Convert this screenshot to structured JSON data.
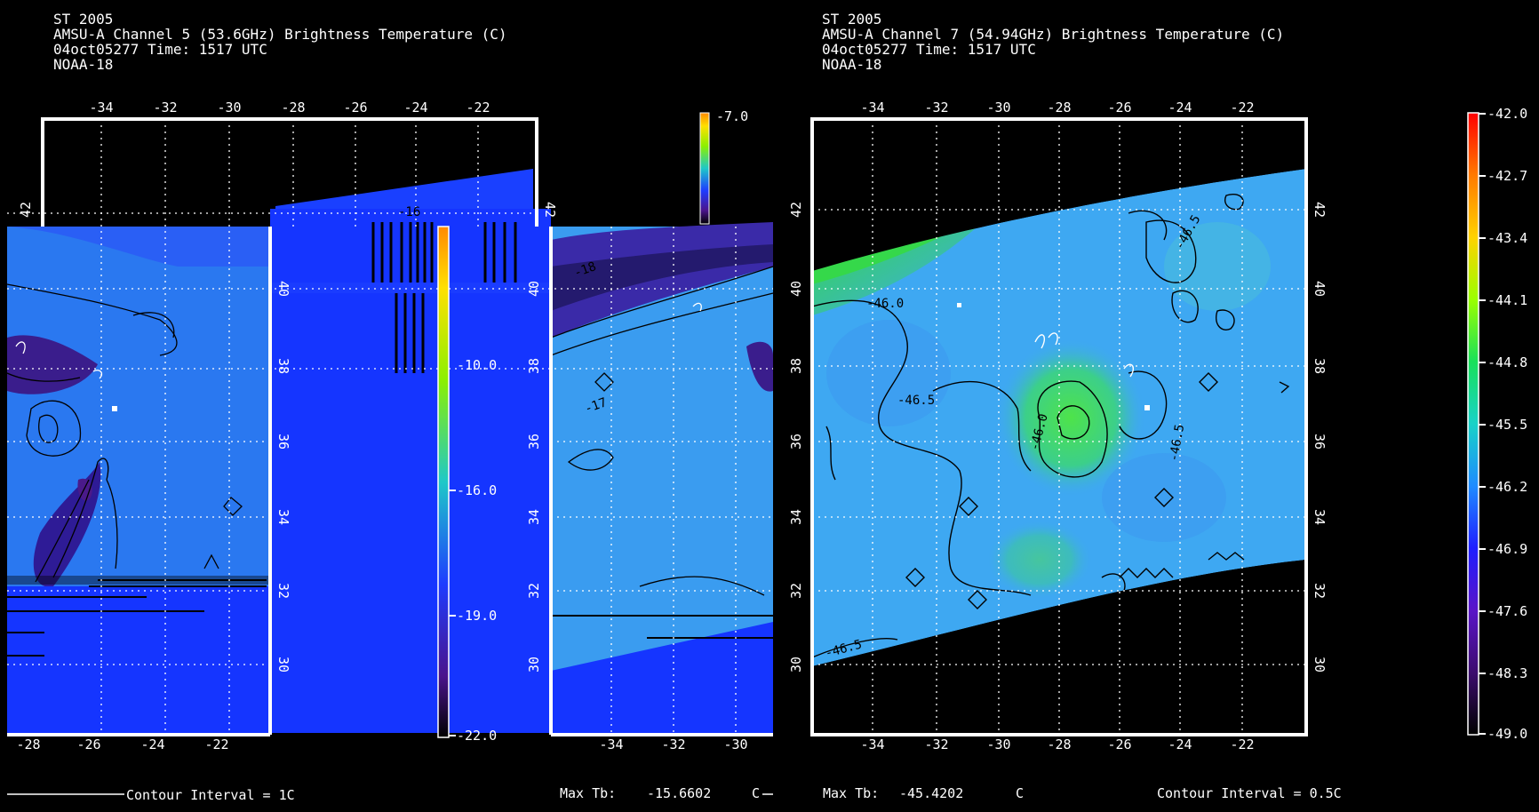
{
  "left_panel": {
    "header": [
      "ST 2005",
      "AMSU-A Channel 5 (53.6GHz) Brightness Temperature (C)",
      "04oct05277 Time: 1517 UTC",
      "NOAA-18"
    ],
    "top_lon_labels": [
      "-34",
      "-32",
      "-30",
      "-28",
      "-26",
      "-24",
      "-22"
    ],
    "bottom_lon_labels": [
      "-28",
      "-26",
      "-24",
      "-22"
    ],
    "bottom_lon_labels_inset": [
      "-34",
      "-32",
      "-30"
    ],
    "lat_labels": [
      "42",
      "40",
      "38",
      "36",
      "34",
      "32",
      "30"
    ],
    "lat_labels_left_visible": [
      "42"
    ],
    "colorbar_labels": [
      "-7.0",
      "-16.0",
      "-19.0",
      "-22.0"
    ],
    "colorbar_partial_label": "-10.0",
    "contour_interval": "Contour Interval = 1C",
    "max_tb_label": "Max Tb:",
    "max_tb_value": "-15.6602",
    "max_tb_unit": "C",
    "contour_labels": [
      "-17",
      "-16",
      "-18"
    ]
  },
  "right_panel": {
    "header": [
      "ST 2005",
      "AMSU-A Channel 7 (54.94GHz) Brightness Temperature (C)",
      "04oct05277 Time: 1517 UTC",
      "NOAA-18"
    ],
    "top_lon_labels": [
      "-34",
      "-32",
      "-30",
      "-28",
      "-26",
      "-24",
      "-22"
    ],
    "bottom_lon_labels": [
      "-34",
      "-32",
      "-30",
      "-28",
      "-26",
      "-24",
      "-22"
    ],
    "lat_labels": [
      "42",
      "40",
      "38",
      "36",
      "34",
      "32",
      "30"
    ],
    "colorbar_labels": [
      "-42.0",
      "-42.7",
      "-43.4",
      "-44.1",
      "-44.8",
      "-45.5",
      "-46.2",
      "-46.9",
      "-47.6",
      "-48.3",
      "-49.0"
    ],
    "contour_labels": [
      "-46.0",
      "-46.5",
      "-46.0",
      "-46.5",
      "-46.5",
      "-46.5"
    ],
    "max_tb_label": "Max Tb:",
    "max_tb_value": "-45.4202",
    "max_tb_unit": "C",
    "contour_interval": "Contour Interval = 0.5C"
  },
  "colors": {
    "background": "#000000",
    "frame": "#ffffff",
    "grid": "#ffffff",
    "contour": "#000000",
    "field_light_blue": "#3ea8f2",
    "field_green": "#45e04a",
    "field_blue": "#1535ff",
    "field_purple": "#3a1d8c",
    "colorbar_stops": [
      "#ff0000",
      "#ff7a00",
      "#ffd200",
      "#9bff00",
      "#19e05a",
      "#19d2c8",
      "#1e8cff",
      "#1e1eff",
      "#5a14c8",
      "#3c0c6e",
      "#000000"
    ]
  }
}
